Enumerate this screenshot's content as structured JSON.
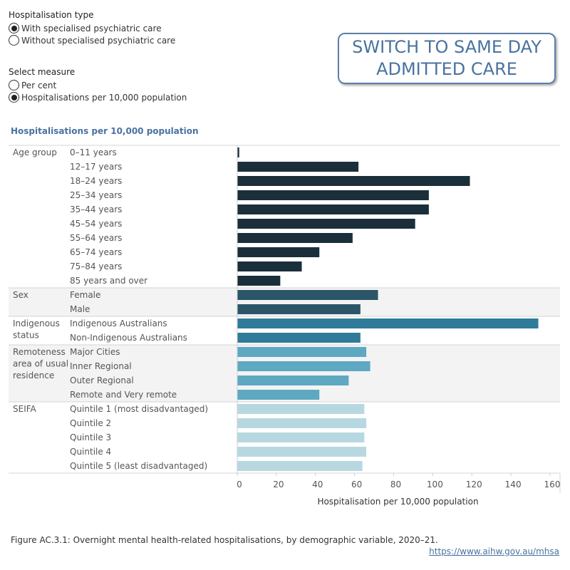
{
  "controls": {
    "hospitalisation_type": {
      "title": "Hospitalisation type",
      "options": [
        "With specialised psychiatric care",
        "Without specialised psychiatric care"
      ],
      "selected": 0
    },
    "measure": {
      "title": "Select measure",
      "options": [
        "Per cent",
        "Hospitalisations per 10,000 population"
      ],
      "selected": 1
    }
  },
  "switch_button": {
    "line1": "SWITCH TO SAME DAY",
    "line2": "ADMITTED CARE"
  },
  "colors": {
    "accent": "#4a72a0",
    "age_group": "#1b2f3b",
    "sex": "#2a5668",
    "indigenous": "#2f7b99",
    "remoteness": "#5ea8c2",
    "seifa": "#b7d8e1",
    "band_shade": "#f3f3f3"
  },
  "chart_data": {
    "type": "bar",
    "orientation": "horizontal",
    "title": "Hospitalisations per 10,000 population",
    "xlabel": "Hospitalisation per 10,000 population",
    "xlim": [
      0,
      160
    ],
    "xticks": [
      0,
      20,
      40,
      60,
      80,
      100,
      120,
      140,
      160
    ],
    "groups": [
      {
        "name": "Age group",
        "color_key": "age_group",
        "shaded": false,
        "categories": [
          "0–11 years",
          "12–17 years",
          "18–24 years",
          "25–34 years",
          "35–44 years",
          "45–54 years",
          "55–64 years",
          "65–74 years",
          "75–84 years",
          "85 years and over"
        ],
        "values": [
          1,
          62,
          119,
          98,
          98,
          91,
          59,
          42,
          33,
          22
        ]
      },
      {
        "name": "Sex",
        "color_key": "sex",
        "shaded": true,
        "categories": [
          "Female",
          "Male"
        ],
        "values": [
          72,
          63
        ]
      },
      {
        "name": "Indigenous status",
        "color_key": "indigenous",
        "shaded": false,
        "categories": [
          "Indigenous Australians",
          "Non-Indigenous Australians"
        ],
        "values": [
          154,
          63
        ]
      },
      {
        "name": "Remoteness area of usual residence",
        "color_key": "remoteness",
        "shaded": true,
        "categories": [
          "Major Cities",
          "Inner Regional",
          "Outer Regional",
          "Remote and Very remote"
        ],
        "values": [
          66,
          68,
          57,
          42
        ]
      },
      {
        "name": "SEIFA",
        "color_key": "seifa",
        "shaded": false,
        "categories": [
          "Quintile 1 (most disadvantaged)",
          "Quintile 2",
          "Quintile 3",
          "Quintile 4",
          "Quintile 5 (least disadvantaged)"
        ],
        "values": [
          65,
          66,
          65,
          66,
          64
        ]
      }
    ]
  },
  "footer": {
    "caption": "Figure AC.3.1: Overnight mental health-related hospitalisations, by demographic variable, 2020–21.",
    "link": "https://www.aihw.gov.au/mhsa"
  }
}
